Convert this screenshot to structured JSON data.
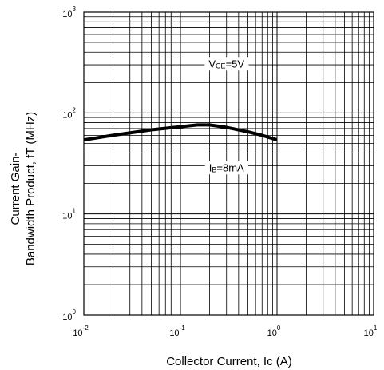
{
  "chart_data": {
    "type": "line",
    "title": "",
    "xlabel": "Collector Current, Ic (A)",
    "ylabel_line1": "Current Gain-",
    "ylabel_line2": "Bandwidth Product, fT (MHz)",
    "x_scale": "log",
    "y_scale": "log",
    "xlim": [
      0.01,
      10
    ],
    "ylim": [
      1,
      1000
    ],
    "x_ticks": [
      {
        "value": 0.01,
        "base": "10",
        "exp": "-2"
      },
      {
        "value": 0.1,
        "base": "10",
        "exp": "-1"
      },
      {
        "value": 1,
        "base": "10",
        "exp": "0"
      },
      {
        "value": 10,
        "base": "10",
        "exp": "1"
      }
    ],
    "y_ticks": [
      {
        "value": 1,
        "base": "10",
        "exp": "0"
      },
      {
        "value": 10,
        "base": "10",
        "exp": "1"
      },
      {
        "value": 100,
        "base": "10",
        "exp": "2"
      },
      {
        "value": 1000,
        "base": "10",
        "exp": "3"
      }
    ],
    "grid": true,
    "legend": "none",
    "series": [
      {
        "x": [
          0.01,
          0.02,
          0.05,
          0.1,
          0.15,
          0.2,
          0.3,
          0.5,
          0.7,
          1.0
        ],
        "y": [
          54,
          60,
          68,
          73,
          76,
          76,
          72,
          65,
          60,
          54
        ],
        "color": "#000000"
      }
    ],
    "annotations": [
      {
        "main": "V",
        "sub": "CE",
        "rest": "=5V",
        "x": 0.3,
        "y": 310
      },
      {
        "main": "I",
        "sub": "B",
        "rest": "=8mA",
        "x": 0.3,
        "y": 29
      }
    ]
  }
}
